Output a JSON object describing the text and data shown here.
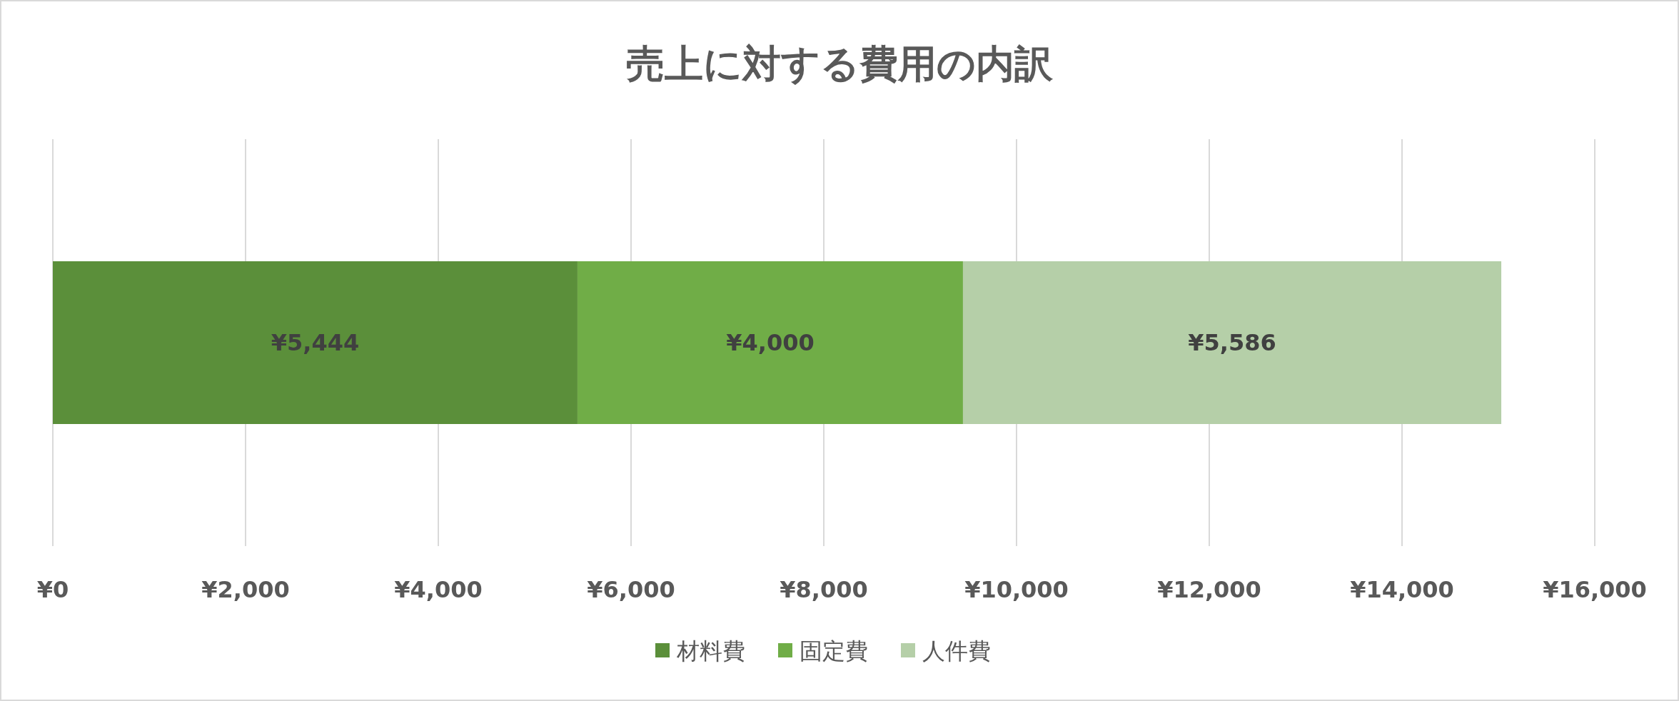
{
  "chart_data": {
    "type": "bar",
    "title": "売上に対する費用の内訳",
    "orientation": "horizontal",
    "stacked": true,
    "categories": [
      null
    ],
    "series": [
      {
        "name": "材料費",
        "color": "#5b8f3a",
        "values": [
          5444
        ],
        "value_labels": [
          "¥5,444"
        ]
      },
      {
        "name": "固定費",
        "color": "#70ad47",
        "values": [
          4000
        ],
        "value_labels": [
          "¥4,000"
        ]
      },
      {
        "name": "人件費",
        "color": "#b5cfa8",
        "values": [
          5586
        ],
        "value_labels": [
          "¥5,586"
        ]
      }
    ],
    "xlim": [
      0,
      16000
    ],
    "xticks": [
      {
        "value": 0,
        "label": "¥0"
      },
      {
        "value": 2000,
        "label": "¥2,000"
      },
      {
        "value": 4000,
        "label": "¥4,000"
      },
      {
        "value": 6000,
        "label": "¥6,000"
      },
      {
        "value": 8000,
        "label": "¥8,000"
      },
      {
        "value": 10000,
        "label": "¥10,000"
      },
      {
        "value": 12000,
        "label": "¥12,000"
      },
      {
        "value": 14000,
        "label": "¥14,000"
      },
      {
        "value": 16000,
        "label": "¥16,000"
      }
    ],
    "grid": "x",
    "legend": "bottom"
  }
}
